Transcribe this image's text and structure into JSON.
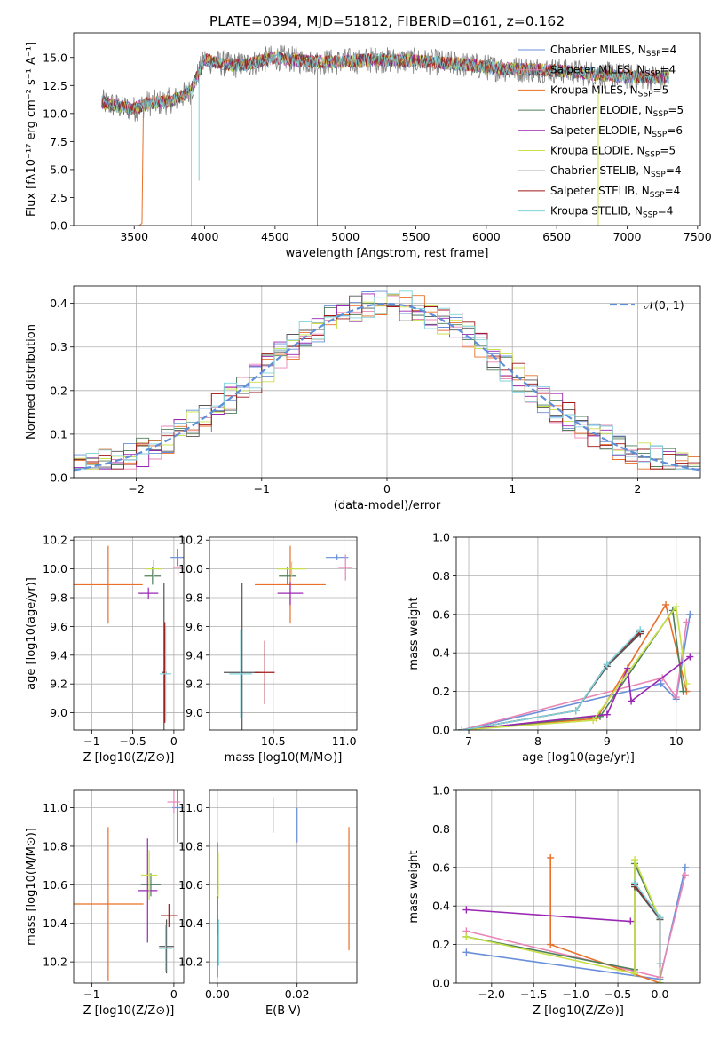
{
  "figure": {
    "title": "PLATE=0394, MJD=51812, FIBERID=0161, z=0.162"
  },
  "colors": {
    "chabrier_miles": "#6a8fd8",
    "salpeter_miles": "#e985b6",
    "kroupa_miles": "#e8702a",
    "chabrier_elodie": "#4f7f5a",
    "salpeter_elodie": "#9a27b4",
    "kroupa_elodie": "#c8e04a",
    "chabrier_stelib": "#555555",
    "salpeter_stelib": "#a01818",
    "kroupa_stelib": "#7ed3dc",
    "gauss": "#5f8fd8"
  },
  "chart_data": [
    {
      "id": "spectrum",
      "type": "line",
      "title": "PLATE=0394, MJD=51812, FIBERID=0161, z=0.162",
      "xlabel": "wavelength [Angstrom, rest frame]",
      "ylabel": "Flux [fλ10⁻¹⁷ erg cm⁻² s⁻¹ A⁻¹]",
      "xlim": [
        3070,
        7520
      ],
      "ylim": [
        0,
        17.2
      ],
      "xticks": [
        3500,
        4000,
        4500,
        5000,
        5500,
        6000,
        6500,
        7000,
        7500
      ],
      "yticks": [
        0.0,
        2.5,
        5.0,
        7.5,
        10.0,
        12.5,
        15.0
      ],
      "continuum": {
        "x": [
          3270,
          3400,
          3500,
          3600,
          3700,
          3800,
          3900,
          4000,
          4100,
          4200,
          4300,
          4400,
          4500,
          4700,
          4900,
          5200,
          5500,
          5800,
          6100,
          6400,
          6700,
          7000,
          7300
        ],
        "y": [
          11.0,
          10.6,
          10.4,
          10.9,
          11.0,
          11.3,
          12.0,
          14.8,
          14.5,
          14.3,
          14.4,
          14.7,
          15.0,
          14.7,
          14.6,
          14.8,
          14.7,
          14.4,
          14.0,
          13.9,
          13.6,
          13.3,
          13.2
        ]
      },
      "series": [
        {
          "name": "Chabrier MILES, N_SSP=4",
          "color_key": "chabrier_miles"
        },
        {
          "name": "Salpeter MILES, N_SSP=4",
          "color_key": "salpeter_miles"
        },
        {
          "name": "Kroupa MILES, N_SSP=5",
          "color_key": "kroupa_miles"
        },
        {
          "name": "Chabrier ELODIE, N_SSP=5",
          "color_key": "chabrier_elodie"
        },
        {
          "name": "Salpeter ELODIE, N_SSP=6",
          "color_key": "salpeter_elodie"
        },
        {
          "name": "Kroupa ELODIE, N_SSP=5",
          "color_key": "kroupa_elodie"
        },
        {
          "name": "Chabrier STELIB, N_SSP=4",
          "color_key": "chabrier_stelib"
        },
        {
          "name": "Salpeter STELIB, N_SSP=4",
          "color_key": "salpeter_stelib"
        },
        {
          "name": "Kroupa STELIB, N_SSP=4",
          "color_key": "kroupa_stelib"
        }
      ],
      "legend": "upper right"
    },
    {
      "id": "residuals",
      "type": "histogram",
      "xlabel": "(data-model)/error",
      "ylabel": "Normed distribution",
      "xlim": [
        -2.5,
        2.5
      ],
      "ylim": [
        0,
        0.44
      ],
      "xticks": [
        -2,
        -1,
        0,
        1,
        2
      ],
      "yticks": [
        0.0,
        0.1,
        0.2,
        0.3,
        0.4
      ],
      "bin_width": 0.1,
      "gaussian": {
        "label": "𝒩(0, 1)",
        "mean": 0,
        "sigma": 1
      },
      "legend": "upper right",
      "grid": true
    },
    {
      "id": "age_vs_Z",
      "type": "errorbar",
      "xlabel": "Z [log10(Z/Z⊙)]",
      "ylabel": "age  [log10(age/yr)]",
      "xlim": [
        -1.22,
        0.12
      ],
      "ylim": [
        8.88,
        10.22
      ],
      "xticks": [
        -1,
        -0.5,
        0
      ],
      "yticks": [
        9.0,
        9.2,
        9.4,
        9.6,
        9.8,
        10.0,
        10.2
      ],
      "points": [
        {
          "color_key": "chabrier_miles",
          "x": 0.04,
          "y": 10.08,
          "xerr": 0.08,
          "yerr": 0.06
        },
        {
          "color_key": "salpeter_miles",
          "x": 0.05,
          "y": 10.01,
          "xerr": 0.06,
          "yerr": 0.06
        },
        {
          "color_key": "kroupa_miles",
          "x": -0.8,
          "y": 9.89,
          "xerr": 0.42,
          "yerr": 0.27
        },
        {
          "color_key": "chabrier_elodie",
          "x": -0.26,
          "y": 9.95,
          "xerr": 0.1,
          "yerr": 0.06
        },
        {
          "color_key": "salpeter_elodie",
          "x": -0.31,
          "y": 9.83,
          "xerr": 0.12,
          "yerr": 0.04
        },
        {
          "color_key": "kroupa_elodie",
          "x": -0.25,
          "y": 10.0,
          "xerr": 0.1,
          "yerr": 0.06
        },
        {
          "color_key": "chabrier_stelib",
          "x": -0.12,
          "y": 9.28,
          "xerr": 0.03,
          "yerr": 0.62
        },
        {
          "color_key": "salpeter_stelib",
          "x": -0.11,
          "y": 9.28,
          "xerr": 0.02,
          "yerr": 0.35
        },
        {
          "color_key": "kroupa_stelib",
          "x": -0.1,
          "y": 9.27,
          "xerr": 0.07,
          "yerr": 0.33
        }
      ]
    },
    {
      "id": "age_vs_mass",
      "type": "errorbar",
      "xlabel": "mass [log10(M/M⊙)]",
      "ylabel": "",
      "xlim": [
        10.05,
        11.09
      ],
      "ylim": [
        8.88,
        10.22
      ],
      "xticks": [
        10.5,
        11.0
      ],
      "yticks": [
        9.0,
        9.2,
        9.4,
        9.6,
        9.8,
        10.0,
        10.2
      ],
      "points": [
        {
          "color_key": "chabrier_miles",
          "x": 10.95,
          "y": 10.08,
          "xerr": 0.08,
          "yerr": 0.02
        },
        {
          "color_key": "salpeter_miles",
          "x": 11.01,
          "y": 10.01,
          "xerr": 0.05,
          "yerr": 0.09
        },
        {
          "color_key": "kroupa_miles",
          "x": 10.62,
          "y": 9.89,
          "xerr": 0.25,
          "yerr": 0.27
        },
        {
          "color_key": "chabrier_elodie",
          "x": 10.6,
          "y": 9.95,
          "xerr": 0.06,
          "yerr": 0.06
        },
        {
          "color_key": "salpeter_elodie",
          "x": 10.62,
          "y": 9.83,
          "xerr": 0.09,
          "yerr": 0.08
        },
        {
          "color_key": "kroupa_elodie",
          "x": 10.63,
          "y": 10.0,
          "xerr": 0.1,
          "yerr": 0.05
        },
        {
          "color_key": "chabrier_stelib",
          "x": 10.28,
          "y": 9.28,
          "xerr": 0.13,
          "yerr": 0.62
        },
        {
          "color_key": "salpeter_stelib",
          "x": 10.44,
          "y": 9.28,
          "xerr": 0.07,
          "yerr": 0.22
        },
        {
          "color_key": "kroupa_stelib",
          "x": 10.27,
          "y": 9.27,
          "xerr": 0.08,
          "yerr": 0.31
        }
      ]
    },
    {
      "id": "weight_vs_age",
      "type": "line",
      "xlabel": "age  [log10(age/yr)]",
      "ylabel": "mass weight",
      "xlim": [
        6.82,
        10.35
      ],
      "ylim": [
        0,
        1
      ],
      "xticks": [
        7,
        8,
        9,
        10
      ],
      "yticks": [
        0.0,
        0.2,
        0.4,
        0.6,
        0.8,
        1.0
      ],
      "grid": true,
      "series": [
        {
          "color_key": "chabrier_miles",
          "x": [
            6.9,
            9.78,
            10.0,
            10.2
          ],
          "y": [
            0.0,
            0.24,
            0.16,
            0.6
          ]
        },
        {
          "color_key": "salpeter_miles",
          "x": [
            6.9,
            9.8,
            10.0,
            10.15
          ],
          "y": [
            0.0,
            0.27,
            0.17,
            0.56
          ]
        },
        {
          "color_key": "kroupa_miles",
          "x": [
            6.9,
            8.85,
            9.85,
            10.15
          ],
          "y": [
            0.0,
            0.06,
            0.65,
            0.2
          ]
        },
        {
          "color_key": "chabrier_elodie",
          "x": [
            6.9,
            8.9,
            9.95,
            10.1
          ],
          "y": [
            0.0,
            0.07,
            0.62,
            0.2
          ]
        },
        {
          "color_key": "salpeter_elodie",
          "x": [
            6.9,
            9.0,
            9.3,
            9.35,
            10.2
          ],
          "y": [
            0.0,
            0.08,
            0.32,
            0.15,
            0.38
          ]
        },
        {
          "color_key": "kroupa_elodie",
          "x": [
            6.9,
            8.8,
            10.0,
            10.15
          ],
          "y": [
            0.0,
            0.05,
            0.64,
            0.24
          ]
        },
        {
          "color_key": "chabrier_stelib",
          "x": [
            6.9,
            8.55,
            9.0,
            9.48
          ],
          "y": [
            0.0,
            0.1,
            0.33,
            0.5
          ]
        },
        {
          "color_key": "salpeter_stelib",
          "x": [
            6.9,
            8.55,
            9.0,
            9.48
          ],
          "y": [
            0.0,
            0.1,
            0.34,
            0.51
          ]
        },
        {
          "color_key": "kroupa_stelib",
          "x": [
            6.9,
            8.55,
            9.0,
            9.48
          ],
          "y": [
            0.0,
            0.1,
            0.34,
            0.52
          ]
        }
      ]
    },
    {
      "id": "mass_vs_Z",
      "type": "errorbar",
      "xlabel": "Z [log10(Z/Z⊙)]",
      "ylabel": "mass [log10(M/M⊙)]",
      "xlim": [
        -1.22,
        0.12
      ],
      "ylim": [
        10.09,
        11.09
      ],
      "xticks": [
        -1,
        0
      ],
      "yticks": [
        10.2,
        10.4,
        10.6,
        10.8,
        11.0
      ],
      "points": [
        {
          "color_key": "chabrier_miles",
          "x": 0.04,
          "y": 11.0,
          "xerr": 0.06,
          "yerr": 0.18
        },
        {
          "color_key": "salpeter_miles",
          "x": 0.0,
          "y": 11.03,
          "xerr": 0.08,
          "yerr": 0.06
        },
        {
          "color_key": "kroupa_miles",
          "x": -0.8,
          "y": 10.5,
          "xerr": 0.43,
          "yerr": 0.4
        },
        {
          "color_key": "chabrier_elodie",
          "x": -0.28,
          "y": 10.6,
          "xerr": 0.12,
          "yerr": 0.06
        },
        {
          "color_key": "salpeter_elodie",
          "x": -0.32,
          "y": 10.57,
          "xerr": 0.12,
          "yerr": 0.27
        },
        {
          "color_key": "kroupa_elodie",
          "x": -0.3,
          "y": 10.65,
          "xerr": 0.1,
          "yerr": 0.13
        },
        {
          "color_key": "chabrier_stelib",
          "x": -0.09,
          "y": 10.28,
          "xerr": 0.09,
          "yerr": 0.14
        },
        {
          "color_key": "salpeter_stelib",
          "x": -0.06,
          "y": 10.44,
          "xerr": 0.1,
          "yerr": 0.06
        },
        {
          "color_key": "kroupa_stelib",
          "x": -0.1,
          "y": 10.27,
          "xerr": 0.08,
          "yerr": 0.12
        }
      ]
    },
    {
      "id": "mass_vs_EBV",
      "type": "errorbar",
      "xlabel": "E(B-V)",
      "ylabel": "",
      "xlim": [
        -0.002,
        0.035
      ],
      "ylim": [
        10.09,
        11.09
      ],
      "xticks": [
        0.0,
        0.02
      ],
      "yticks": [
        10.2,
        10.4,
        10.6,
        10.8,
        11.0
      ],
      "points": [
        {
          "color_key": "chabrier_miles",
          "x": 0.02,
          "y": 10.91,
          "yerr": 0.09
        },
        {
          "color_key": "salpeter_miles",
          "x": 0.014,
          "y": 10.96,
          "yerr": 0.09
        },
        {
          "color_key": "kroupa_miles",
          "x": 0.033,
          "y": 10.58,
          "yerr": 0.32
        },
        {
          "color_key": "chabrier_elodie",
          "x": 0.0,
          "y": 10.6,
          "yerr": 0.05
        },
        {
          "color_key": "salpeter_elodie",
          "x": 0.0,
          "y": 10.7,
          "yerr": 0.12
        },
        {
          "color_key": "kroupa_elodie",
          "x": 0.0002,
          "y": 10.65,
          "yerr": 0.12
        },
        {
          "color_key": "chabrier_stelib",
          "x": 0.0,
          "y": 10.32,
          "yerr": 0.2
        },
        {
          "color_key": "salpeter_stelib",
          "x": 0.0,
          "y": 10.44,
          "yerr": 0.1
        },
        {
          "color_key": "kroupa_stelib",
          "x": 0.0003,
          "y": 10.3,
          "yerr": 0.12
        }
      ]
    },
    {
      "id": "weight_vs_Z",
      "type": "line",
      "xlabel": "Z [log10(Z/Z⊙)]",
      "ylabel": "mass weight",
      "xlim": [
        -2.42,
        0.48
      ],
      "ylim": [
        0,
        1
      ],
      "xticks": [
        -2.0,
        -1.5,
        -1.0,
        -0.5,
        0.0
      ],
      "yticks": [
        0.0,
        0.2,
        0.4,
        0.6,
        0.8,
        1.0
      ],
      "grid": true,
      "series": [
        {
          "color_key": "chabrier_miles",
          "x": [
            -2.3,
            0.0,
            0.3
          ],
          "y": [
            0.16,
            0.02,
            0.6
          ]
        },
        {
          "color_key": "salpeter_miles",
          "x": [
            -2.3,
            0.0,
            0.3
          ],
          "y": [
            0.27,
            0.03,
            0.56
          ]
        },
        {
          "color_key": "kroupa_miles",
          "x": [
            -1.3,
            -1.3,
            0.0
          ],
          "y": [
            0.65,
            0.2,
            0.0
          ]
        },
        {
          "color_key": "chabrier_elodie",
          "x": [
            -2.3,
            -0.3,
            -0.3,
            0.0,
            0.0
          ],
          "y": [
            0.24,
            0.07,
            0.62,
            0.33,
            0.0
          ]
        },
        {
          "color_key": "salpeter_elodie",
          "x": [
            -2.3,
            -0.35
          ],
          "y": [
            0.38,
            0.32
          ]
        },
        {
          "color_key": "kroupa_elodie",
          "x": [
            -2.3,
            -0.3,
            -0.3,
            0.0,
            0.0
          ],
          "y": [
            0.24,
            0.05,
            0.64,
            0.33,
            0.0
          ]
        },
        {
          "color_key": "chabrier_stelib",
          "x": [
            -0.3,
            0.0,
            0.0
          ],
          "y": [
            0.5,
            0.33,
            0.1
          ]
        },
        {
          "color_key": "salpeter_stelib",
          "x": [
            -0.3,
            0.0,
            0.0
          ],
          "y": [
            0.51,
            0.34,
            0.1
          ]
        },
        {
          "color_key": "kroupa_stelib",
          "x": [
            -0.3,
            0.0,
            0.0
          ],
          "y": [
            0.52,
            0.34,
            0.1
          ]
        }
      ]
    }
  ]
}
